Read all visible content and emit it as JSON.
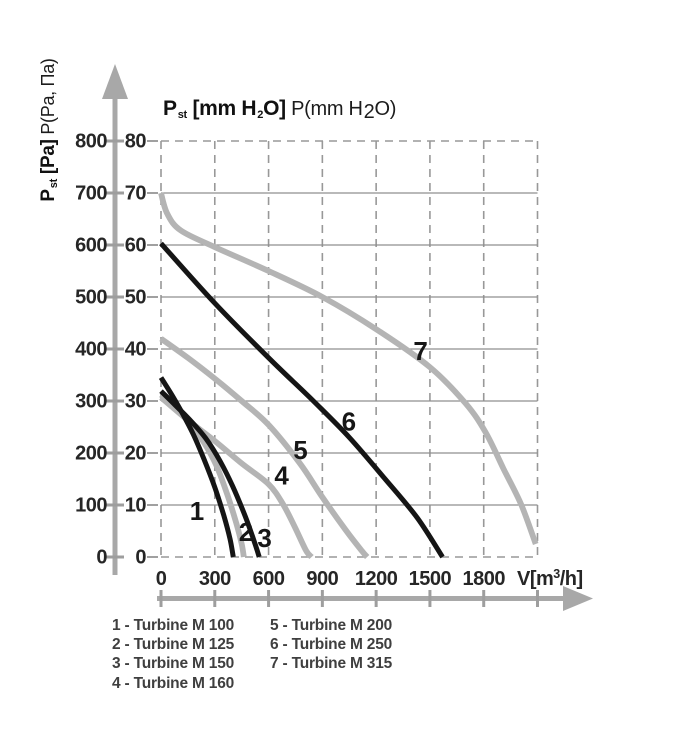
{
  "colors": {
    "curve_black": "#151515",
    "curve_gray": "#b4b4b4",
    "grid_solid": "#8f8f8f",
    "grid_dash": "#989898",
    "axis_arrow": "#a8a8a8",
    "tick_text": "#262626",
    "curve_label_text": "#161616",
    "legend_text": "#3f3f3f"
  },
  "top_axis_title": {
    "b1": "P",
    "b1_sub": "st",
    "b2": " [mm H",
    "b2_sub": "2",
    "b3": "O]",
    "r1": " P(mm H",
    "r1_sub": "2",
    "r2": "O)"
  },
  "left_axis_title": {
    "b1": "P",
    "b1_sub": "st",
    "b2": " [Pa]",
    "r1": " P(Pa, Па)"
  },
  "legend": {
    "col1": [
      "1 - Turbine M 100",
      "2 - Turbine M 125",
      "3 - Turbine M 150",
      "4 - Turbine M 160"
    ],
    "col2": [
      "5 - Turbine M 200",
      "6 - Turbine M 250",
      "7 - Turbine M 315"
    ]
  },
  "chart_data": {
    "type": "line",
    "title": "P st [mm H2O] P(mm H2O)",
    "xlabel": "V[m3/h]",
    "xlabel_parts": {
      "pre": "V[m",
      "sup": "3",
      "post": "/h]"
    },
    "ylabel_left": "P st [Pa] P(Pa, Па)",
    "x_ticks": [
      0,
      300,
      600,
      900,
      1200,
      1500,
      1800
    ],
    "x_range": [
      0,
      2100
    ],
    "y_ticks_mm": [
      0,
      10,
      20,
      30,
      40,
      50,
      60,
      70,
      80
    ],
    "y_ticks_pa": [
      0,
      100,
      200,
      300,
      400,
      500,
      600,
      700,
      800
    ],
    "y_range_mm": [
      0,
      80
    ],
    "grid": {
      "h_solid_mm": [
        10,
        20,
        30,
        40,
        50,
        60,
        70
      ],
      "h_dashed_mm": [
        0,
        80
      ],
      "v_dashed": [
        0,
        300,
        600,
        900,
        1200,
        1500,
        1800,
        2100
      ]
    },
    "series": [
      {
        "id": 1,
        "name": "Turbine M 100",
        "color": "black",
        "points": [
          [
            0,
            34.5
          ],
          [
            60,
            31.2
          ],
          [
            120,
            27.6
          ],
          [
            180,
            23.6
          ],
          [
            240,
            18.8
          ],
          [
            300,
            13.4
          ],
          [
            350,
            8
          ],
          [
            385,
            3.5
          ],
          [
            403,
            0
          ]
        ],
        "label": {
          "text": "1",
          "v": 201,
          "p": 8.7
        }
      },
      {
        "id": 2,
        "name": "Turbine M 125",
        "color": "gray",
        "points": [
          [
            0,
            31.2
          ],
          [
            80,
            28.7
          ],
          [
            160,
            25.8
          ],
          [
            240,
            22
          ],
          [
            310,
            17.5
          ],
          [
            370,
            12
          ],
          [
            420,
            6.5
          ],
          [
            450,
            2.5
          ],
          [
            462,
            0
          ]
        ],
        "label": {
          "text": "2",
          "v": 474,
          "p": 4.6
        }
      },
      {
        "id": 3,
        "name": "Turbine M 150",
        "color": "black",
        "points": [
          [
            0,
            31.9
          ],
          [
            80,
            29.2
          ],
          [
            160,
            26.4
          ],
          [
            250,
            22.8
          ],
          [
            330,
            18.4
          ],
          [
            400,
            13.6
          ],
          [
            470,
            7.8
          ],
          [
            520,
            3
          ],
          [
            548,
            0
          ]
        ],
        "label": {
          "text": "3",
          "v": 578,
          "p": 3.5
        }
      },
      {
        "id": 4,
        "name": "Turbine M 160",
        "color": "gray",
        "points": [
          [
            0,
            30.7
          ],
          [
            150,
            26.3
          ],
          [
            300,
            22.3
          ],
          [
            450,
            18
          ],
          [
            600,
            14
          ],
          [
            680,
            10.2
          ],
          [
            750,
            5.5
          ],
          [
            810,
            1.2
          ],
          [
            840,
            0
          ]
        ],
        "label": {
          "text": "4",
          "v": 673,
          "p": 15.5
        }
      },
      {
        "id": 5,
        "name": "Turbine M 200",
        "color": "gray",
        "points": [
          [
            0,
            42
          ],
          [
            150,
            38.3
          ],
          [
            300,
            34.3
          ],
          [
            450,
            30
          ],
          [
            600,
            25.4
          ],
          [
            775,
            18
          ],
          [
            900,
            11.5
          ],
          [
            1030,
            5.2
          ],
          [
            1120,
            1.2
          ],
          [
            1150,
            0
          ]
        ],
        "label": {
          "text": "5",
          "v": 778,
          "p": 20.4
        }
      },
      {
        "id": 6,
        "name": "Turbine M 250",
        "color": "black",
        "points": [
          [
            0,
            60.3
          ],
          [
            300,
            48.8
          ],
          [
            600,
            38.3
          ],
          [
            850,
            30
          ],
          [
            1050,
            23
          ],
          [
            1250,
            15
          ],
          [
            1430,
            7.5
          ],
          [
            1570,
            0
          ]
        ],
        "label": {
          "text": "6",
          "v": 1048,
          "p": 25.9
        }
      },
      {
        "id": 7,
        "name": "Turbine M 315",
        "color": "gray",
        "points": [
          [
            0,
            70
          ],
          [
            35,
            66
          ],
          [
            110,
            62.8
          ],
          [
            300,
            59.6
          ],
          [
            600,
            55
          ],
          [
            900,
            50
          ],
          [
            1200,
            43.8
          ],
          [
            1500,
            36.5
          ],
          [
            1700,
            29.5
          ],
          [
            1810,
            24
          ],
          [
            1910,
            17
          ],
          [
            2010,
            10
          ],
          [
            2090,
            2.5
          ]
        ],
        "label": {
          "text": "7",
          "v": 1448,
          "p": 39.4
        }
      }
    ]
  }
}
